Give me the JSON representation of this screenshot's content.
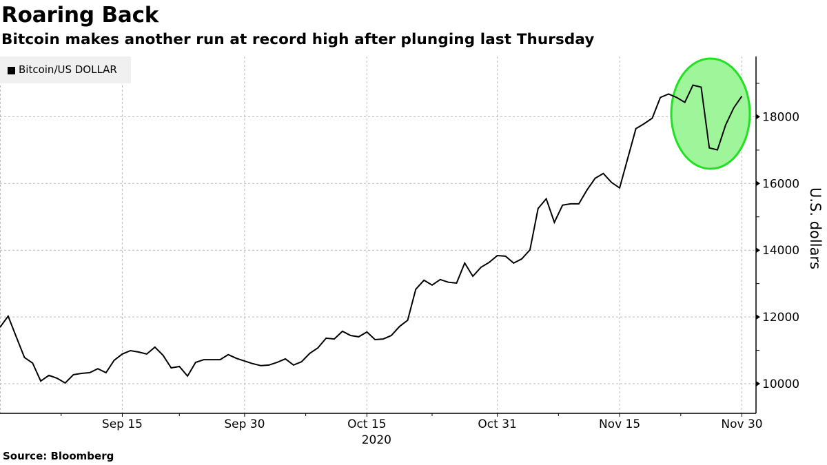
{
  "header": {
    "title": "Roaring Back",
    "subtitle": "Bitcoin makes another run at record high after plunging last Thursday"
  },
  "legend": {
    "label": "Bitcoin/US DOLLAR",
    "swatch_color": "#000000"
  },
  "footer": {
    "source": "Source:  Bloomberg"
  },
  "colors": {
    "line": "#000000",
    "highlight_fill": "#9ff59a",
    "highlight_stroke": "#22e022",
    "grid": "#bbbbbb"
  },
  "chart_data": {
    "type": "line",
    "title": "Roaring Back",
    "subtitle": "Bitcoin makes another run at record high after plunging last Thursday",
    "xlabel": "2020",
    "ylabel": "U.S. dollars",
    "ylim": [
      9200,
      19800
    ],
    "yticks": [
      10000,
      12000,
      14000,
      16000,
      18000
    ],
    "xtick_labels": [
      "Sep 15",
      "Sep 30",
      "Oct 15",
      "Oct 31",
      "Nov 15",
      "Nov 30"
    ],
    "year_label": "2020",
    "grid": true,
    "legend_position": "top-left",
    "annotation": "green ellipse highlighting Nov 22 - Nov 30 plunge and recovery",
    "series": [
      {
        "name": "Bitcoin/US DOLLAR",
        "x": [
          "Aug 31",
          "Sep 1",
          "Sep 2",
          "Sep 3",
          "Sep 4",
          "Sep 5",
          "Sep 6",
          "Sep 7",
          "Sep 8",
          "Sep 9",
          "Sep 10",
          "Sep 11",
          "Sep 12",
          "Sep 13",
          "Sep 14",
          "Sep 15",
          "Sep 16",
          "Sep 17",
          "Sep 18",
          "Sep 19",
          "Sep 20",
          "Sep 21",
          "Sep 22",
          "Sep 23",
          "Sep 24",
          "Sep 25",
          "Sep 26",
          "Sep 27",
          "Sep 28",
          "Sep 29",
          "Sep 30",
          "Oct 1",
          "Oct 2",
          "Oct 3",
          "Oct 4",
          "Oct 5",
          "Oct 6",
          "Oct 7",
          "Oct 8",
          "Oct 9",
          "Oct 10",
          "Oct 11",
          "Oct 12",
          "Oct 13",
          "Oct 14",
          "Oct 15",
          "Oct 16",
          "Oct 17",
          "Oct 18",
          "Oct 19",
          "Oct 20",
          "Oct 21",
          "Oct 22",
          "Oct 23",
          "Oct 24",
          "Oct 25",
          "Oct 26",
          "Oct 27",
          "Oct 28",
          "Oct 29",
          "Oct 30",
          "Oct 31",
          "Nov 1",
          "Nov 2",
          "Nov 3",
          "Nov 4",
          "Nov 5",
          "Nov 6",
          "Nov 7",
          "Nov 8",
          "Nov 9",
          "Nov 10",
          "Nov 11",
          "Nov 12",
          "Nov 13",
          "Nov 14",
          "Nov 15",
          "Nov 16",
          "Nov 17",
          "Nov 18",
          "Nov 19",
          "Nov 20",
          "Nov 21",
          "Nov 22",
          "Nov 23",
          "Nov 24",
          "Nov 25",
          "Nov 26",
          "Nov 27",
          "Nov 28",
          "Nov 29",
          "Nov 30"
        ],
        "values": [
          11690,
          12025,
          11400,
          10785,
          10620,
          10080,
          10250,
          10165,
          10020,
          10270,
          10310,
          10330,
          10450,
          10330,
          10700,
          10890,
          10990,
          10950,
          10890,
          11095,
          10850,
          10475,
          10515,
          10230,
          10640,
          10720,
          10720,
          10720,
          10870,
          10760,
          10680,
          10600,
          10540,
          10560,
          10640,
          10745,
          10560,
          10660,
          10910,
          11075,
          11365,
          11340,
          11570,
          11445,
          11405,
          11550,
          11320,
          11340,
          11445,
          11715,
          11900,
          12830,
          13100,
          12955,
          13120,
          13040,
          13015,
          13615,
          13220,
          13490,
          13635,
          13840,
          13820,
          13615,
          13740,
          14010,
          15250,
          15540,
          14835,
          15350,
          15390,
          15390,
          15805,
          16155,
          16300,
          16030,
          15865,
          16755,
          17640,
          17790,
          17955,
          18575,
          18680,
          18575,
          18430,
          18945,
          18885,
          17065,
          17005,
          17750,
          18265,
          18615
        ]
      }
    ]
  }
}
